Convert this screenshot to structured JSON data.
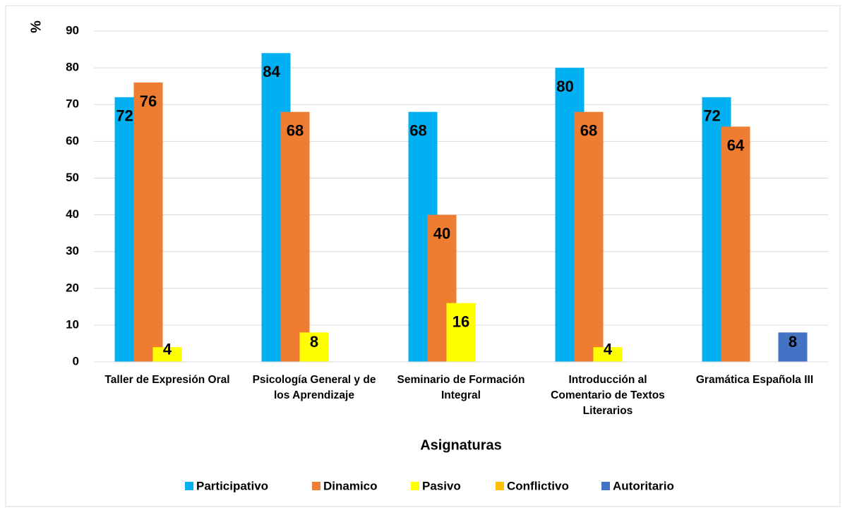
{
  "chart_data": {
    "type": "bar",
    "categories": [
      "Taller de Expresión Oral",
      "Psicología General y de los Aprendizaje",
      "Seminario de Formación Integral",
      "Introducción al Comentario de Textos Literarios",
      "Gramática Española III"
    ],
    "series": [
      {
        "name": "Participativo",
        "color": "#00b0f0",
        "values": [
          72,
          84,
          68,
          80,
          72
        ]
      },
      {
        "name": "Dinamico",
        "color": "#ee7d31",
        "values": [
          76,
          68,
          40,
          68,
          64
        ]
      },
      {
        "name": "Pasivo",
        "color": "#ffff00",
        "values": [
          4,
          8,
          16,
          4,
          null
        ]
      },
      {
        "name": "Conflictivo",
        "color": "#ffc000",
        "values": [
          null,
          null,
          null,
          null,
          null
        ]
      },
      {
        "name": "Autoritario",
        "color": "#4472c4",
        "values": [
          null,
          null,
          null,
          null,
          8
        ]
      }
    ],
    "ylabel": "%",
    "xlabel": "Asignaturas",
    "ylim": [
      0,
      90
    ],
    "yticks": [
      0,
      10,
      20,
      30,
      40,
      50,
      60,
      70,
      80,
      90
    ],
    "grid": true,
    "legend": "bottom"
  }
}
